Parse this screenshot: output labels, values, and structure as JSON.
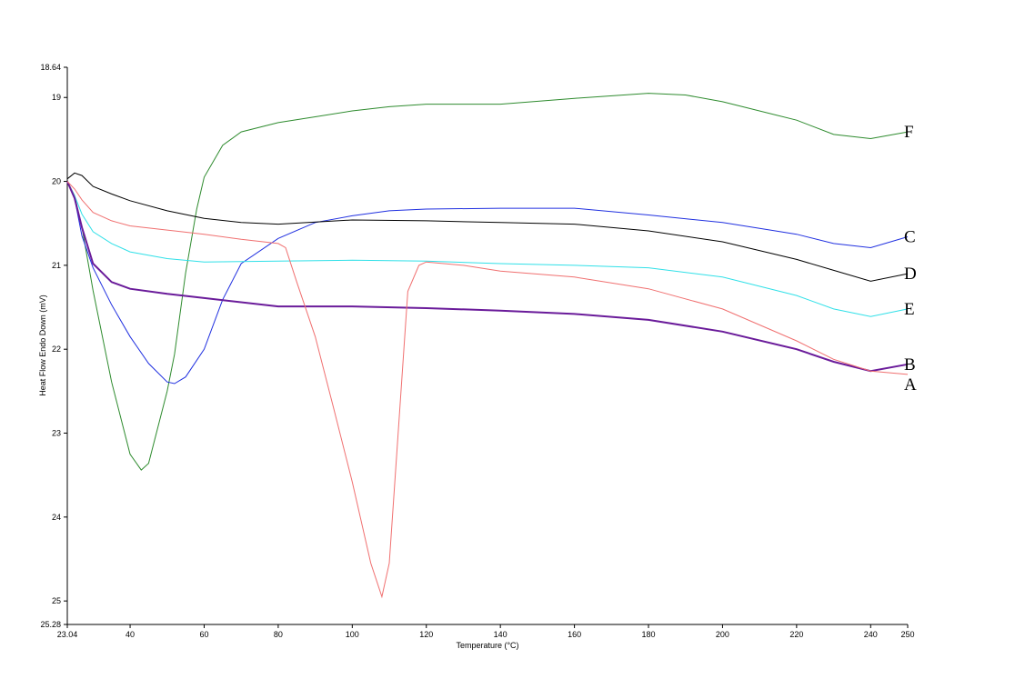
{
  "chart_data": {
    "type": "line",
    "x_label": "Temperature (°C)",
    "y_label": "Heat Flow Endo Down (mV)",
    "xlim": [
      23.04,
      250
    ],
    "xticks": [
      23.04,
      40,
      60,
      80,
      100,
      120,
      140,
      160,
      180,
      200,
      220,
      240,
      250
    ],
    "ylim": [
      18.64,
      25.28
    ],
    "yticks": [
      18.64,
      19,
      20,
      21,
      22,
      23,
      24,
      25,
      25.28
    ],
    "invert_y": true,
    "grid": false,
    "series": [
      {
        "name": "F",
        "color": "#2e8b2e",
        "x": [
          23.04,
          25,
          27,
          30,
          35,
          40,
          43,
          45,
          50,
          52,
          55,
          58,
          60,
          65,
          70,
          80,
          90,
          100,
          110,
          120,
          140,
          160,
          180,
          190,
          200,
          220,
          230,
          240,
          250
        ],
        "values": [
          20.0,
          20.17,
          20.55,
          21.3,
          22.39,
          23.25,
          23.44,
          23.36,
          22.5,
          22.06,
          21.09,
          20.33,
          19.95,
          19.57,
          19.41,
          19.3,
          19.23,
          19.16,
          19.11,
          19.08,
          19.08,
          19.01,
          18.95,
          18.97,
          19.05,
          19.27,
          19.44,
          19.49,
          19.41
        ]
      },
      {
        "name": "C",
        "color": "#2030e0",
        "x": [
          23.04,
          25,
          27,
          30,
          35,
          40,
          45,
          50,
          52,
          55,
          60,
          65,
          70,
          80,
          90,
          100,
          110,
          120,
          140,
          160,
          180,
          200,
          220,
          230,
          240,
          250
        ],
        "values": [
          20.0,
          20.2,
          20.65,
          21.03,
          21.47,
          21.85,
          22.17,
          22.39,
          22.41,
          22.33,
          22.0,
          21.41,
          20.98,
          20.68,
          20.49,
          20.41,
          20.35,
          20.33,
          20.32,
          20.32,
          20.4,
          20.49,
          20.63,
          20.74,
          20.79,
          20.66
        ]
      },
      {
        "name": "D",
        "color": "#000000",
        "x": [
          23.04,
          25,
          27,
          30,
          35,
          40,
          50,
          60,
          70,
          80,
          100,
          120,
          140,
          160,
          180,
          200,
          220,
          230,
          240,
          250
        ],
        "values": [
          19.97,
          19.9,
          19.93,
          20.06,
          20.15,
          20.23,
          20.35,
          20.44,
          20.49,
          20.51,
          20.46,
          20.47,
          20.49,
          20.51,
          20.59,
          20.72,
          20.93,
          21.06,
          21.19,
          21.1
        ]
      },
      {
        "name": "E",
        "color": "#30e0e8",
        "x": [
          23.04,
          25,
          27,
          30,
          35,
          40,
          50,
          60,
          80,
          100,
          120,
          140,
          160,
          180,
          200,
          220,
          230,
          240,
          250
        ],
        "values": [
          20.0,
          20.17,
          20.39,
          20.6,
          20.74,
          20.84,
          20.92,
          20.96,
          20.95,
          20.94,
          20.95,
          20.98,
          21.0,
          21.03,
          21.14,
          21.36,
          21.52,
          21.61,
          21.52
        ]
      },
      {
        "name": "B",
        "color": "#6a1b9a",
        "x": [
          23.04,
          25,
          27,
          30,
          35,
          40,
          50,
          60,
          80,
          100,
          120,
          140,
          160,
          180,
          200,
          220,
          230,
          240,
          250
        ],
        "values": [
          20.0,
          20.2,
          20.55,
          20.98,
          21.2,
          21.28,
          21.34,
          21.39,
          21.49,
          21.49,
          21.51,
          21.54,
          21.58,
          21.65,
          21.79,
          22.0,
          22.15,
          22.26,
          22.18
        ]
      },
      {
        "name": "A",
        "color": "#f07070",
        "x": [
          23.04,
          25,
          27,
          30,
          35,
          40,
          50,
          60,
          70,
          80,
          82,
          85,
          90,
          95,
          100,
          105,
          108,
          110,
          112,
          115,
          118,
          120,
          130,
          140,
          160,
          180,
          200,
          220,
          230,
          240,
          250
        ],
        "values": [
          20.0,
          20.09,
          20.22,
          20.37,
          20.47,
          20.53,
          20.58,
          20.63,
          20.69,
          20.74,
          20.79,
          21.2,
          21.85,
          22.71,
          23.58,
          24.55,
          24.95,
          24.55,
          23.25,
          21.31,
          21.0,
          20.96,
          21.0,
          21.07,
          21.14,
          21.28,
          21.52,
          21.9,
          22.12,
          22.26,
          22.3
        ]
      }
    ]
  }
}
